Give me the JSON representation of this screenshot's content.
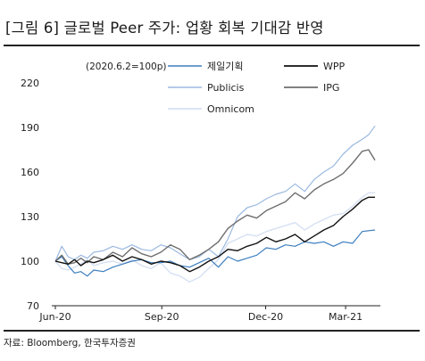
{
  "title": "[그림 6] 글로벌 Peer 주가: 업황 회복 기대감 반영",
  "source": "자료: Bloomberg, 한국투자증권",
  "chart_data": {
    "type": "line",
    "note": "(2020.6.2=100p)",
    "ylim": [
      70,
      220
    ],
    "yticks": [
      70,
      100,
      130,
      160,
      190,
      220
    ],
    "xticks": [
      {
        "label": "Jun-20",
        "pos": 0
      },
      {
        "label": "Sep-20",
        "pos": 0.333
      },
      {
        "label": "Dec-20",
        "pos": 0.658
      },
      {
        "label": "Mar-21",
        "pos": 0.908
      }
    ],
    "grid": false,
    "legend_position": "top",
    "series": [
      {
        "name": "제일기획",
        "color": "#3f7fbf",
        "width": 1.2,
        "x": [
          0,
          0.02,
          0.04,
          0.06,
          0.08,
          0.1,
          0.12,
          0.15,
          0.18,
          0.21,
          0.24,
          0.27,
          0.3,
          0.33,
          0.36,
          0.39,
          0.42,
          0.45,
          0.48,
          0.51,
          0.54,
          0.57,
          0.6,
          0.63,
          0.66,
          0.69,
          0.72,
          0.75,
          0.78,
          0.81,
          0.84,
          0.87,
          0.9,
          0.93,
          0.96,
          1.0
        ],
        "values": [
          100,
          103,
          97,
          92,
          93,
          90,
          94,
          93,
          96,
          98,
          100,
          101,
          99,
          99,
          100,
          97,
          96,
          99,
          102,
          96,
          103,
          100,
          102,
          104,
          109,
          108,
          111,
          110,
          113,
          112,
          113,
          110,
          113,
          112,
          120,
          121
        ]
      },
      {
        "name": "WPP",
        "color": "#111111",
        "width": 1.4,
        "x": [
          0,
          0.02,
          0.04,
          0.06,
          0.08,
          0.1,
          0.12,
          0.15,
          0.18,
          0.21,
          0.24,
          0.27,
          0.3,
          0.33,
          0.36,
          0.39,
          0.42,
          0.45,
          0.48,
          0.51,
          0.54,
          0.57,
          0.6,
          0.63,
          0.66,
          0.69,
          0.72,
          0.75,
          0.78,
          0.81,
          0.84,
          0.87,
          0.9,
          0.93,
          0.96,
          0.98,
          1.0
        ],
        "values": [
          100,
          99,
          98,
          101,
          97,
          100,
          99,
          101,
          104,
          100,
          103,
          101,
          98,
          100,
          99,
          97,
          93,
          96,
          100,
          103,
          108,
          107,
          110,
          112,
          116,
          113,
          115,
          118,
          113,
          117,
          121,
          124,
          130,
          135,
          141,
          143,
          143
        ]
      },
      {
        "name": "Publicis",
        "color": "#9bb9e0",
        "width": 1.2,
        "x": [
          0,
          0.02,
          0.04,
          0.06,
          0.08,
          0.1,
          0.12,
          0.15,
          0.18,
          0.21,
          0.24,
          0.27,
          0.3,
          0.33,
          0.36,
          0.39,
          0.42,
          0.45,
          0.48,
          0.51,
          0.54,
          0.57,
          0.6,
          0.63,
          0.66,
          0.69,
          0.72,
          0.75,
          0.78,
          0.81,
          0.84,
          0.87,
          0.9,
          0.93,
          0.96,
          0.98,
          1.0
        ],
        "values": [
          100,
          110,
          103,
          101,
          104,
          102,
          106,
          107,
          110,
          108,
          111,
          108,
          107,
          111,
          109,
          105,
          101,
          103,
          108,
          103,
          115,
          130,
          136,
          138,
          142,
          145,
          147,
          152,
          147,
          155,
          160,
          164,
          172,
          178,
          182,
          185,
          191
        ]
      },
      {
        "name": "IPG",
        "color": "#6e6e6e",
        "width": 1.4,
        "x": [
          0,
          0.02,
          0.04,
          0.06,
          0.08,
          0.1,
          0.12,
          0.15,
          0.18,
          0.21,
          0.24,
          0.27,
          0.3,
          0.33,
          0.36,
          0.39,
          0.42,
          0.45,
          0.48,
          0.51,
          0.54,
          0.57,
          0.6,
          0.63,
          0.66,
          0.69,
          0.72,
          0.75,
          0.78,
          0.81,
          0.84,
          0.87,
          0.9,
          0.93,
          0.96,
          0.98,
          1.0
        ],
        "values": [
          100,
          104,
          98,
          99,
          102,
          99,
          103,
          101,
          106,
          103,
          109,
          105,
          103,
          106,
          111,
          108,
          101,
          104,
          108,
          113,
          122,
          127,
          131,
          129,
          134,
          137,
          140,
          146,
          142,
          148,
          152,
          155,
          159,
          166,
          174,
          175,
          168
        ]
      },
      {
        "name": "Omnicom",
        "color": "#d6e0f2",
        "width": 1.4,
        "x": [
          0,
          0.02,
          0.04,
          0.06,
          0.08,
          0.1,
          0.12,
          0.15,
          0.18,
          0.21,
          0.24,
          0.27,
          0.3,
          0.33,
          0.36,
          0.39,
          0.42,
          0.45,
          0.48,
          0.51,
          0.54,
          0.57,
          0.6,
          0.63,
          0.66,
          0.69,
          0.72,
          0.75,
          0.78,
          0.81,
          0.84,
          0.87,
          0.9,
          0.93,
          0.96,
          0.98,
          1.0
        ],
        "values": [
          100,
          95,
          94,
          96,
          98,
          101,
          97,
          99,
          100,
          98,
          101,
          97,
          95,
          99,
          92,
          90,
          86,
          89,
          95,
          101,
          112,
          115,
          118,
          117,
          120,
          122,
          124,
          126,
          121,
          125,
          128,
          131,
          132,
          137,
          143,
          146,
          146
        ]
      }
    ]
  }
}
